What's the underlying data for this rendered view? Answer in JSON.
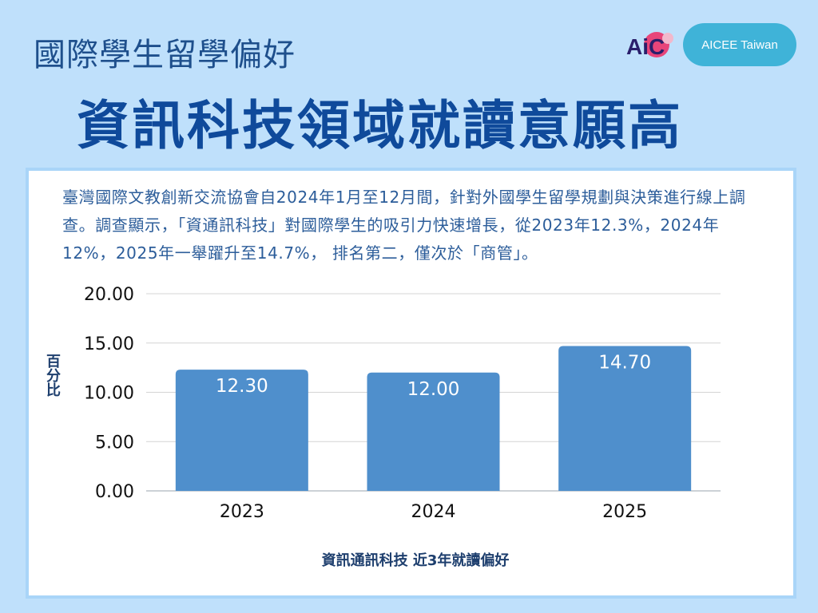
{
  "header": {
    "subtitle": "國際學生留學偏好",
    "title": "資訊科技領域就讀意願高",
    "logo_text": "AiC",
    "brand_button": "AICEE Taiwan"
  },
  "description": "臺灣國際文教創新交流協會自2024年1月至12月間，針對外國學生留學規劃與決策進行線上調查。調查顯示，「資通訊科技」對國際學生的吸引力快速增長，從2023年12.3%，2024年12%，2025年一舉躍升至14.7%， 排名第二，僅次於「商管」。",
  "colors": {
    "background": "#bfe0fb",
    "bar": "#4f8fcc",
    "title": "#0f4a9b",
    "pill": "#3fb3d8"
  },
  "chart_data": {
    "type": "bar",
    "categories": [
      "2023",
      "2024",
      "2025"
    ],
    "values": [
      12.3,
      12.0,
      14.7
    ],
    "value_labels": [
      "12.30",
      "12.00",
      "14.70"
    ],
    "yticks": [
      "0.00",
      "5.00",
      "10.00",
      "15.00",
      "20.00"
    ],
    "ylim": [
      0,
      20
    ],
    "ylabel": "百分比",
    "xlabel": "資訊通訊科技 近3年就讀偏好",
    "grid": true
  }
}
